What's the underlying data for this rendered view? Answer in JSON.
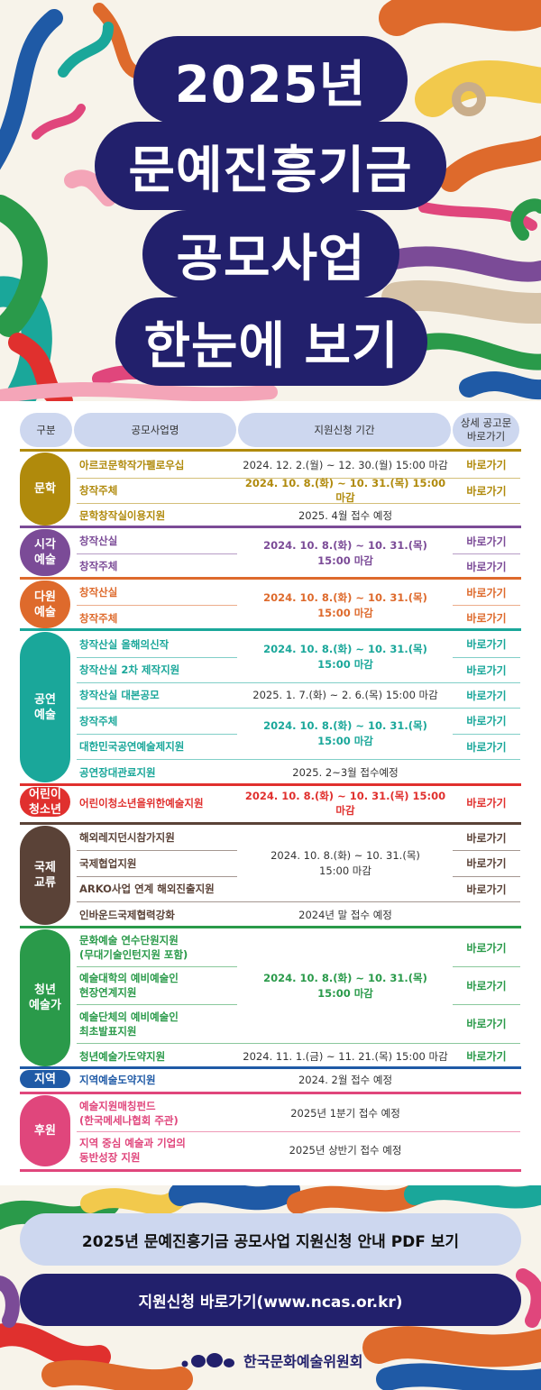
{
  "title": {
    "line1": "2025년",
    "line2": "문예진흥기금",
    "line3": "공모사업",
    "line4": "한눈에 보기"
  },
  "colors": {
    "navy": "#22206c",
    "literature": "#b08a0c",
    "visual": "#7b4b97",
    "multi": "#de6a2c",
    "performing": "#1aa79a",
    "children": "#e0302e",
    "international": "#5a4237",
    "young": "#2a9a4a",
    "regional": "#1f5aa6",
    "sponsor": "#e0467c"
  },
  "table": {
    "headers": {
      "category": "구분",
      "name": "공모사업명",
      "period": "지원신청 기간",
      "link": "상세 공고문\n바로가기"
    },
    "link_label": "바로가기",
    "literature": {
      "category": "문학",
      "rows": [
        {
          "name": "아르코문학작가펠로우십",
          "period": "2024. 12. 2.(월) ~ 12. 30.(월) 15:00 마감",
          "link": "바로가기"
        },
        {
          "name": "창작주체",
          "period": "2024. 10. 8.(화) ~ 10. 31.(목) 15:00 마감",
          "link": "바로가기"
        },
        {
          "name": "문학창작실이용지원",
          "period": "2025. 4월 접수 예정",
          "link": ""
        }
      ]
    },
    "visual": {
      "category": "시각\n예술",
      "period": "2024. 10. 8.(화) ~ 10. 31.(목)\n15:00 마감",
      "rows": [
        {
          "name": "창작산실",
          "link": "바로가기"
        },
        {
          "name": "창작주체",
          "link": "바로가기"
        }
      ]
    },
    "multi": {
      "category": "다원\n예술",
      "period": "2024. 10. 8.(화) ~ 10. 31.(목)\n15:00 마감",
      "rows": [
        {
          "name": "창작산실",
          "link": "바로가기"
        },
        {
          "name": "창작주체",
          "link": "바로가기"
        }
      ]
    },
    "performing": {
      "category": "공연\n예술",
      "period_a": "2024. 10. 8.(화) ~ 10. 31.(목)\n15:00 마감",
      "period_b": "2024. 10. 8.(화) ~ 10. 31.(목)\n15:00 마감",
      "rows": [
        {
          "name": "창작산실 올해의신작",
          "link": "바로가기"
        },
        {
          "name": "창작산실 2차 제작지원",
          "link": "바로가기"
        },
        {
          "name": "창작산실 대본공모",
          "period": "2025. 1. 7.(화) ~ 2. 6.(목) 15:00 마감",
          "link": "바로가기"
        },
        {
          "name": "창작주체",
          "link": "바로가기"
        },
        {
          "name": "대한민국공연예술제지원",
          "link": "바로가기"
        },
        {
          "name": "공연장대관료지원",
          "period": "2025. 2~3월 접수예정",
          "link": ""
        }
      ]
    },
    "children": {
      "category": "어린이\n청소년",
      "rows": [
        {
          "name": "어린이청소년을위한예술지원",
          "period": "2024. 10. 8.(화) ~ 10. 31.(목) 15:00 마감",
          "link": "바로가기"
        }
      ]
    },
    "international": {
      "category": "국제\n교류",
      "period": "2024. 10. 8.(화) ~ 10. 31.(목)\n15:00 마감",
      "rows": [
        {
          "name": "해외레지던시참가지원",
          "link": "바로가기"
        },
        {
          "name": "국제협업지원",
          "link": "바로가기"
        },
        {
          "name": "ARKO사업 연계 해외진출지원",
          "link": "바로가기"
        },
        {
          "name": "인바운드국제협력강화",
          "period": "2024년 말 접수 예정",
          "link": ""
        }
      ]
    },
    "young": {
      "category": "청년\n예술가",
      "period": "2024. 10. 8.(화) ~ 10. 31.(목)\n15:00 마감",
      "rows": [
        {
          "name": "문화예술 연수단원지원\n(무대기술인턴지원 포함)",
          "link": "바로가기"
        },
        {
          "name": "예술대학의 예비예술인\n현장연계지원",
          "link": "바로가기"
        },
        {
          "name": "예술단체의 예비예술인\n최초발표지원",
          "link": "바로가기"
        },
        {
          "name": "청년예술가도약지원",
          "period": "2024. 11. 1.(금) ~ 11. 21.(목) 15:00 마감",
          "link": "바로가기"
        }
      ]
    },
    "regional": {
      "category": "지역",
      "rows": [
        {
          "name": "지역예술도약지원",
          "period": "2024. 2월 접수 예정",
          "link": ""
        }
      ]
    },
    "sponsor": {
      "category": "후원",
      "rows": [
        {
          "name": "예술지원매칭펀드\n(한국메세나협회 주관)",
          "period": "2025년 1분기 접수 예정",
          "link": ""
        },
        {
          "name": "지역 중심 예술과 기업의\n동반성장 지원",
          "period": "2025년 상반기 접수 예정",
          "link": ""
        }
      ]
    }
  },
  "buttons": {
    "pdf": "2025년 문예진흥기금 공모사업 지원신청 안내 PDF 보기",
    "apply": "지원신청 바로가기(www.ncas.or.kr)"
  },
  "logo": {
    "text": "한국문화예술위원회"
  }
}
